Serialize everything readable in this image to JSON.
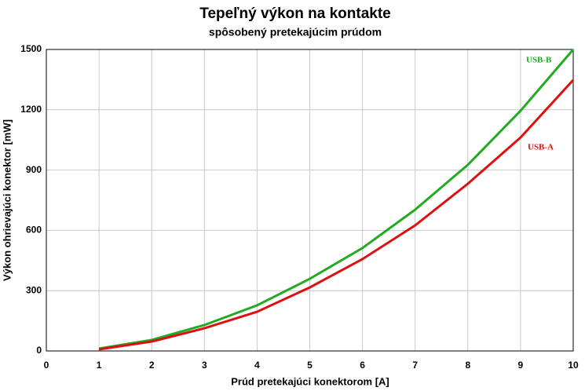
{
  "chart_data": {
    "type": "line",
    "title": "Tepeľný výkon na kontakte",
    "subtitle": "spôsobený pretekajúcim prúdom",
    "x_label": "Prúd pretekajúci konektorom [A]",
    "y_label": "Výkon ohrievajúci konektor [mW]",
    "x": [
      1,
      2,
      3,
      4,
      5,
      6,
      7,
      8,
      9,
      10
    ],
    "series": [
      {
        "name": "USB-B",
        "color": "#22aa22",
        "values": [
          12,
          55,
          129,
          227,
          359,
          512,
          703,
          926,
          1195,
          1500
        ]
      },
      {
        "name": "USB-A",
        "color": "#dd1111",
        "values": [
          8,
          47,
          113,
          195,
          316,
          457,
          625,
          832,
          1062,
          1348
        ]
      }
    ],
    "xlim": [
      0,
      10
    ],
    "xticks": [
      0,
      1,
      2,
      3,
      4,
      5,
      6,
      7,
      8,
      9,
      10
    ],
    "ylim": [
      0,
      1500
    ],
    "yticks": [
      0,
      300,
      600,
      900,
      1200,
      1500
    ],
    "grid": true
  }
}
